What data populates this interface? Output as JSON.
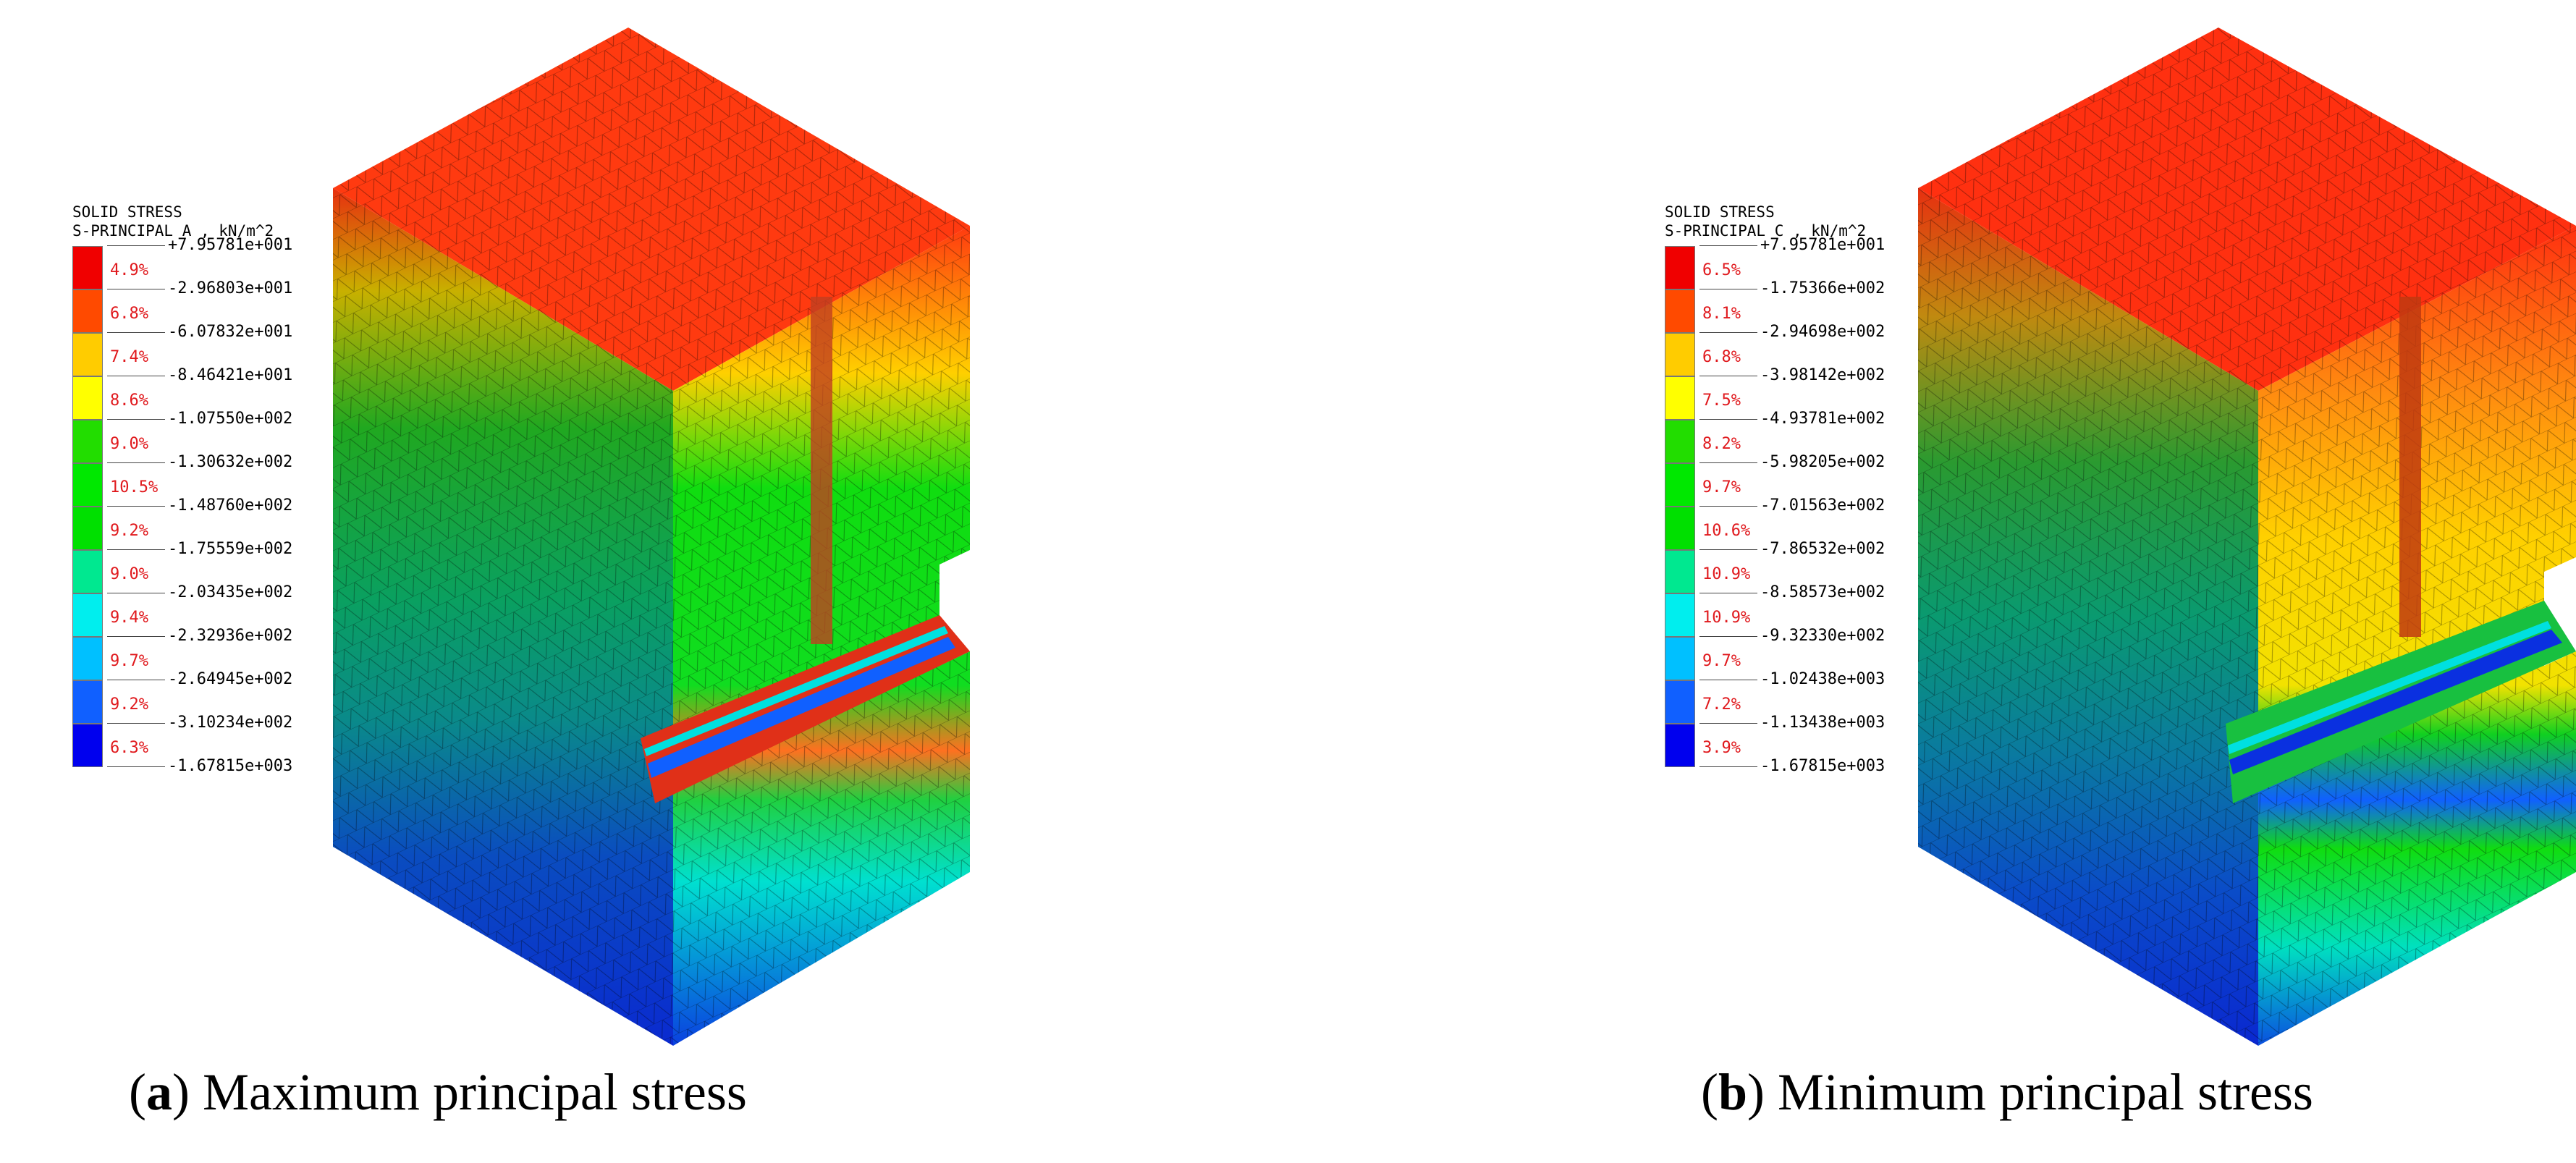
{
  "panels": [
    {
      "id": "a",
      "legend": {
        "title_line1": "SOLID STRESS",
        "title_line2": "S-PRINCIPAL A , kN/m^2",
        "values": [
          "+7.95781e+001",
          "-2.96803e+001",
          "-6.07832e+001",
          "-8.46421e+001",
          "-1.07550e+002",
          "-1.30632e+002",
          "-1.48760e+002",
          "-1.75559e+002",
          "-2.03435e+002",
          "-2.32936e+002",
          "-2.64945e+002",
          "-3.10234e+002",
          "-1.67815e+003"
        ],
        "percents": [
          "4.9%",
          "6.8%",
          "7.4%",
          "8.6%",
          "9.0%",
          "10.5%",
          "9.2%",
          "9.0%",
          "9.4%",
          "9.7%",
          "9.2%",
          "6.3%"
        ],
        "colors": [
          "#f00000",
          "#ff4a00",
          "#ffcc00",
          "#ffff00",
          "#22dd00",
          "#00e800",
          "#00e000",
          "#00e890",
          "#00eeee",
          "#00c0ff",
          "#1060ff",
          "#0000ee"
        ]
      },
      "caption_letter": "a",
      "caption_text": " Maximum principal stress"
    },
    {
      "id": "b",
      "legend": {
        "title_line1": "SOLID STRESS",
        "title_line2": "S-PRINCIPAL C , kN/m^2",
        "values": [
          "+7.95781e+001",
          "-1.75366e+002",
          "-2.94698e+002",
          "-3.98142e+002",
          "-4.93781e+002",
          "-5.98205e+002",
          "-7.01563e+002",
          "-7.86532e+002",
          "-8.58573e+002",
          "-9.32330e+002",
          "-1.02438e+003",
          "-1.13438e+003",
          "-1.67815e+003"
        ],
        "percents": [
          "6.5%",
          "8.1%",
          "6.8%",
          "7.5%",
          "8.2%",
          "9.7%",
          "10.6%",
          "10.9%",
          "10.9%",
          "9.7%",
          "7.2%",
          "3.9%"
        ],
        "colors": [
          "#f00000",
          "#ff4a00",
          "#ffcc00",
          "#ffff00",
          "#22dd00",
          "#00e800",
          "#00e000",
          "#00e890",
          "#00eeee",
          "#00c0ff",
          "#1060ff",
          "#0000ee"
        ]
      },
      "caption_letter": "b",
      "caption_text": " Minimum principal stress"
    }
  ]
}
